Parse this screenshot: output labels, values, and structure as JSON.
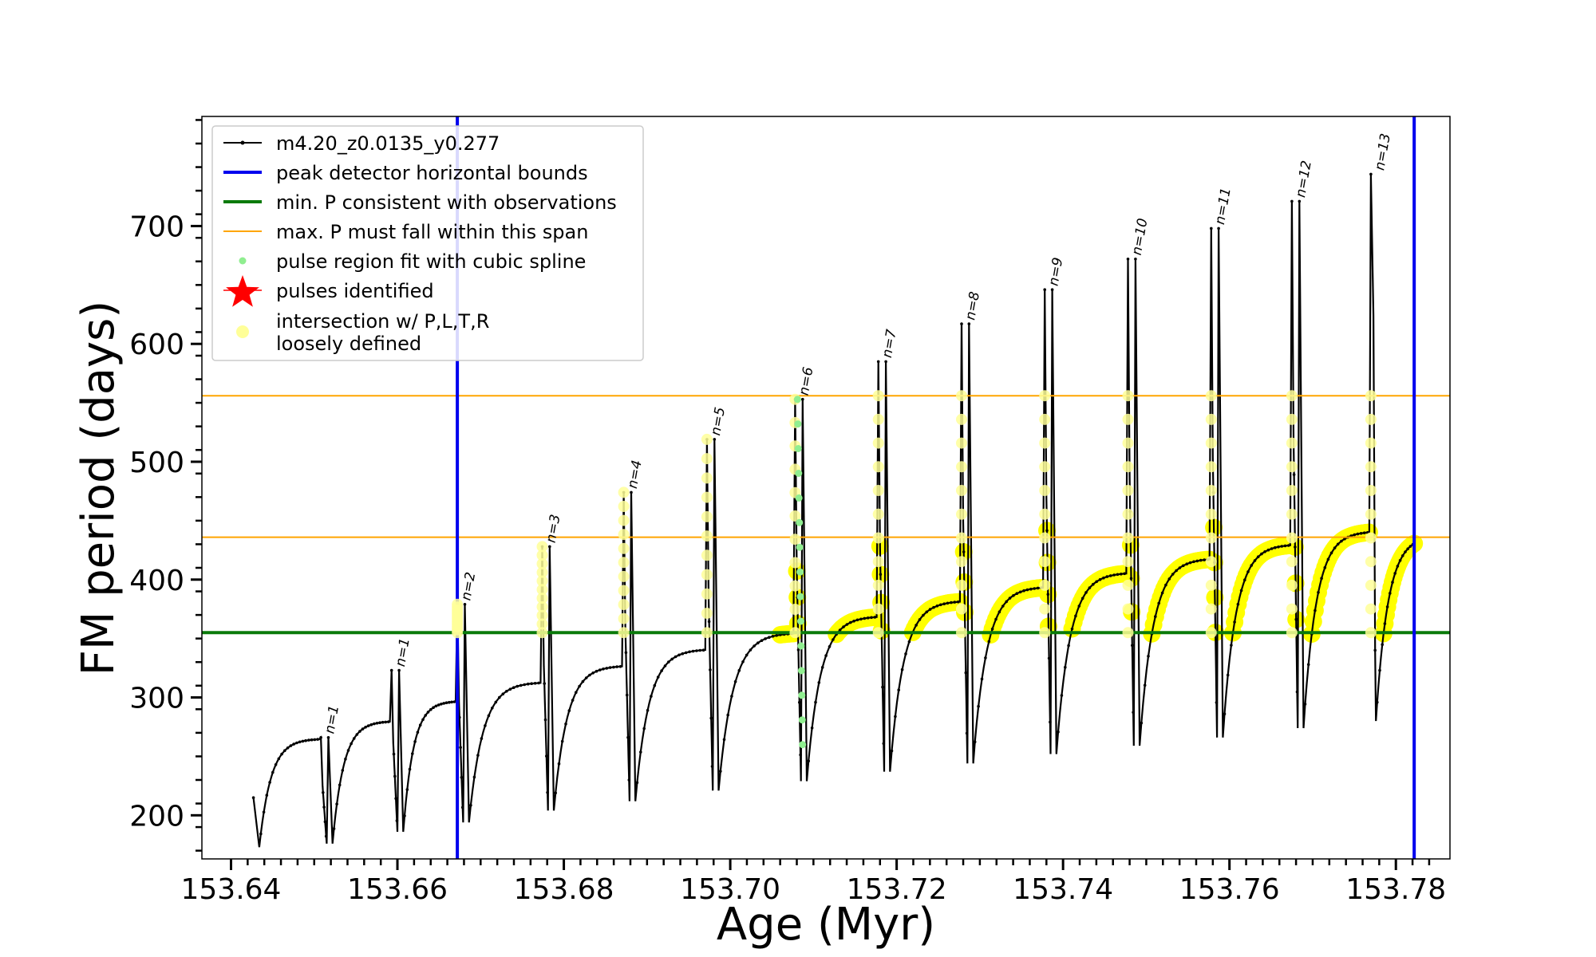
{
  "chart_data": {
    "type": "line",
    "xlabel": "Age (Myr)",
    "ylabel": "FM period (days)",
    "xlim": [
      153.6365,
      153.7865
    ],
    "ylim": [
      163,
      793
    ],
    "x_ticks": [
      153.64,
      153.66,
      153.68,
      153.7,
      153.72,
      153.74,
      153.76,
      153.78
    ],
    "x_tick_labels": [
      "153.64",
      "153.66",
      "153.68",
      "153.70",
      "153.72",
      "153.74",
      "153.76",
      "153.78"
    ],
    "y_ticks": [
      200,
      300,
      400,
      500,
      600,
      700
    ],
    "y_tick_labels": [
      "200",
      "300",
      "400",
      "500",
      "600",
      "700"
    ],
    "legend_position": "top-left",
    "legend": [
      {
        "label": "m4.20_z0.0135_y0.277",
        "kind": "line-marker",
        "color": "#000000"
      },
      {
        "label": "peak detector horizontal bounds",
        "kind": "line",
        "color": "#0000ee"
      },
      {
        "label": "min. P consistent with observations",
        "kind": "line",
        "color": "#0a7a0a"
      },
      {
        "label": "max. P must fall within this span",
        "kind": "line",
        "color": "#ffa500"
      },
      {
        "label": "pulse region fit with cubic spline",
        "kind": "dot",
        "color": "#90ee90"
      },
      {
        "label": "pulses identified",
        "kind": "star",
        "color": "#ff0000"
      },
      {
        "label": "intersection w/ P,L,T,R",
        "label2": "loosely defined",
        "kind": "circle",
        "color": "#ffff99"
      }
    ],
    "vertical_bounds": [
      153.6672,
      153.7822
    ],
    "min_period": 355,
    "max_period_span": [
      436,
      556
    ],
    "track_start": {
      "age": 153.6427,
      "period": 215
    },
    "track_end": {
      "age": 153.7822,
      "period": 437
    },
    "pulses": [
      {
        "label": "n=1",
        "age": 153.6508,
        "peak": 266,
        "min": 176,
        "plateau": 280
      },
      {
        "label": "n=1",
        "age": 153.6593,
        "peak": 323,
        "min": 186,
        "plateau": 297
      },
      {
        "label": "n=2",
        "age": 153.6672,
        "peak": 379,
        "min": 194,
        "plateau": 313
      },
      {
        "label": "n=3",
        "age": 153.6774,
        "peak": 428,
        "min": 204,
        "plateau": 327
      },
      {
        "label": "n=4",
        "age": 153.6872,
        "peak": 474,
        "min": 212,
        "plateau": 341
      },
      {
        "label": "n=5",
        "age": 153.6972,
        "peak": 519,
        "min": 221,
        "plateau": 355
      },
      {
        "label": "n=6",
        "age": 153.7078,
        "peak": 553,
        "min": 229,
        "plateau": 369
      },
      {
        "label": "n=7",
        "age": 153.7178,
        "peak": 585,
        "min": 237,
        "plateau": 382
      },
      {
        "label": "n=8",
        "age": 153.7278,
        "peak": 617,
        "min": 244,
        "plateau": 394
      },
      {
        "label": "n=9",
        "age": 153.7378,
        "peak": 646,
        "min": 252,
        "plateau": 406
      },
      {
        "label": "n=10",
        "age": 153.7478,
        "peak": 672,
        "min": 259,
        "plateau": 418
      },
      {
        "label": "n=11",
        "age": 153.7578,
        "peak": 698,
        "min": 266,
        "plateau": 430
      },
      {
        "label": "n=12",
        "age": 153.7675,
        "peak": 721,
        "min": 274,
        "plateau": 441
      },
      {
        "label": "n=13",
        "age": 153.777,
        "peak": 744,
        "min": 280,
        "plateau": null
      }
    ],
    "labeled_pulse_count": 13,
    "colors": {
      "track": "#000000",
      "bounds": "#0000ee",
      "min_line": "#0a7a0a",
      "span_lines": "#ffa500",
      "spline": "#90ee90",
      "intersection": "#ffff00",
      "intersection_light": "#ffff99"
    }
  }
}
